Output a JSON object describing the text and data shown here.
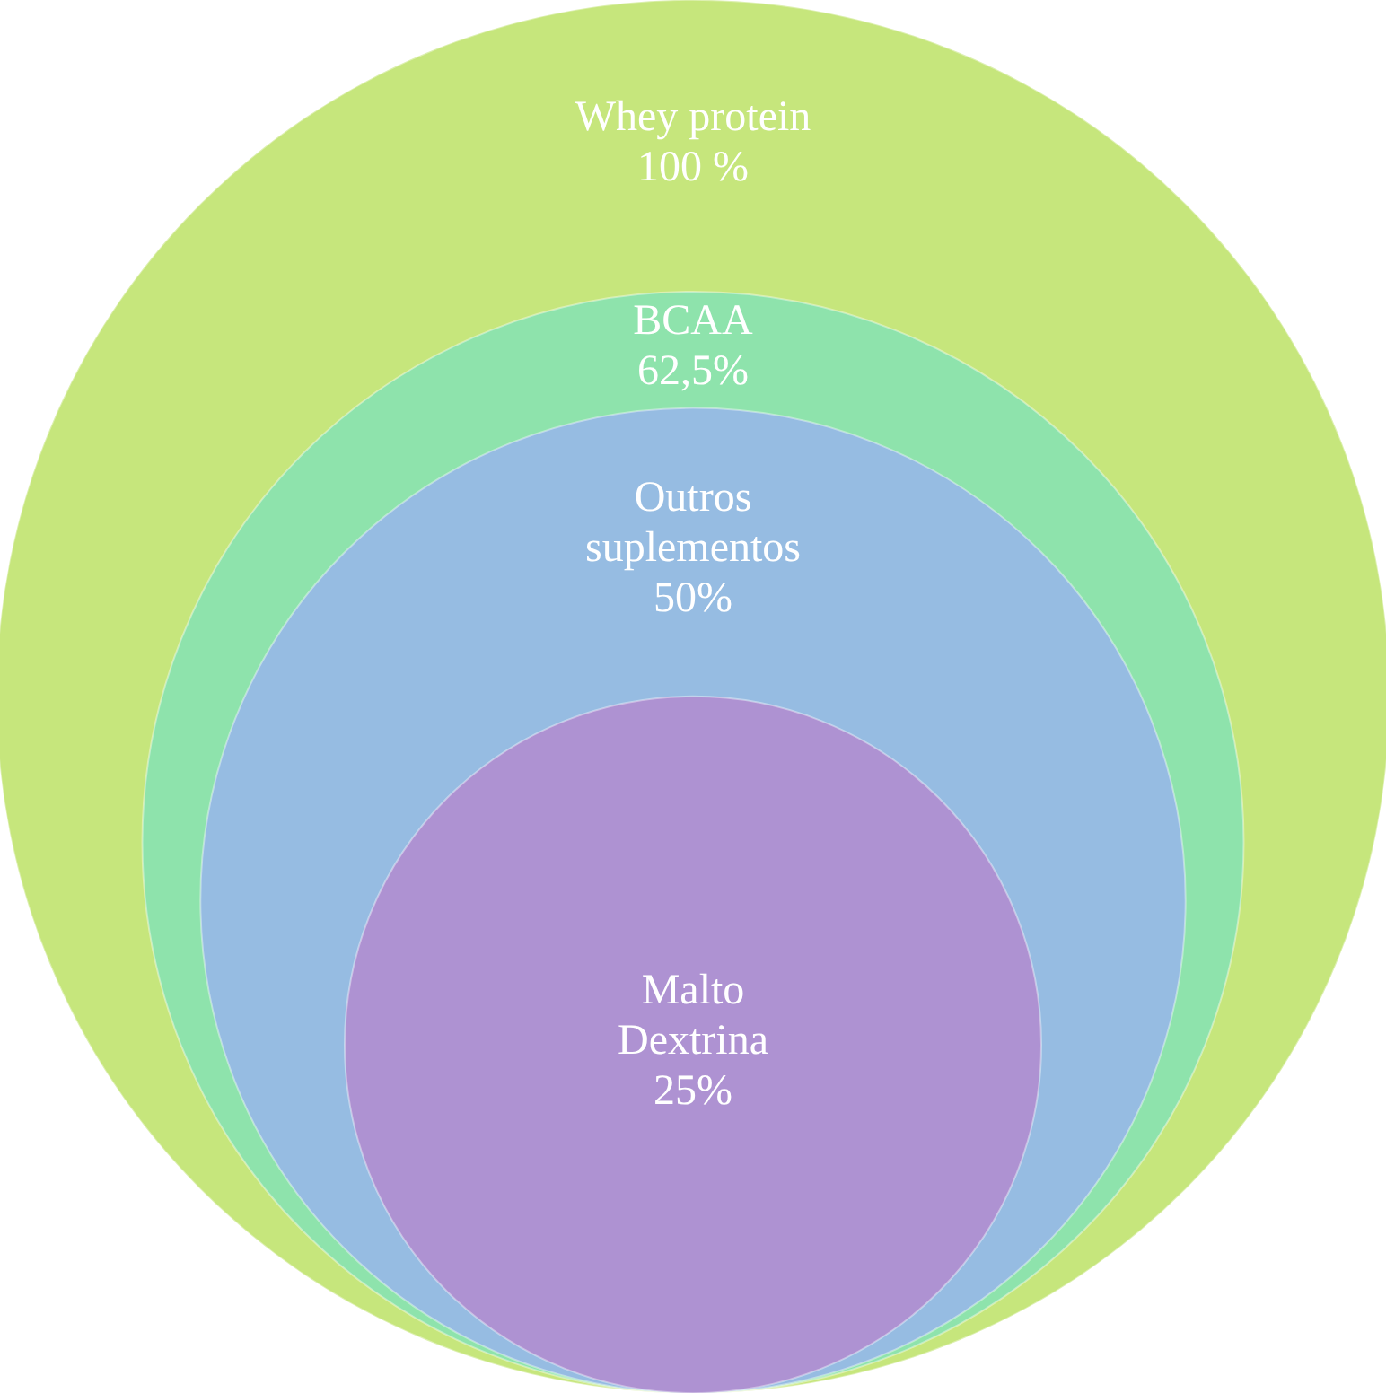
{
  "chart_data": {
    "type": "other",
    "categories": [
      "Whey protein",
      "BCAA",
      "Outros suplementos",
      "Malto Dextrina"
    ],
    "values": [
      100,
      62.5,
      50,
      25
    ],
    "value_labels": [
      "100 %",
      "62,5%",
      "50%",
      "25%"
    ],
    "colors": [
      "#c6e67c",
      "#8ee3ac",
      "#96bce2",
      "#ae92d2"
    ]
  }
}
